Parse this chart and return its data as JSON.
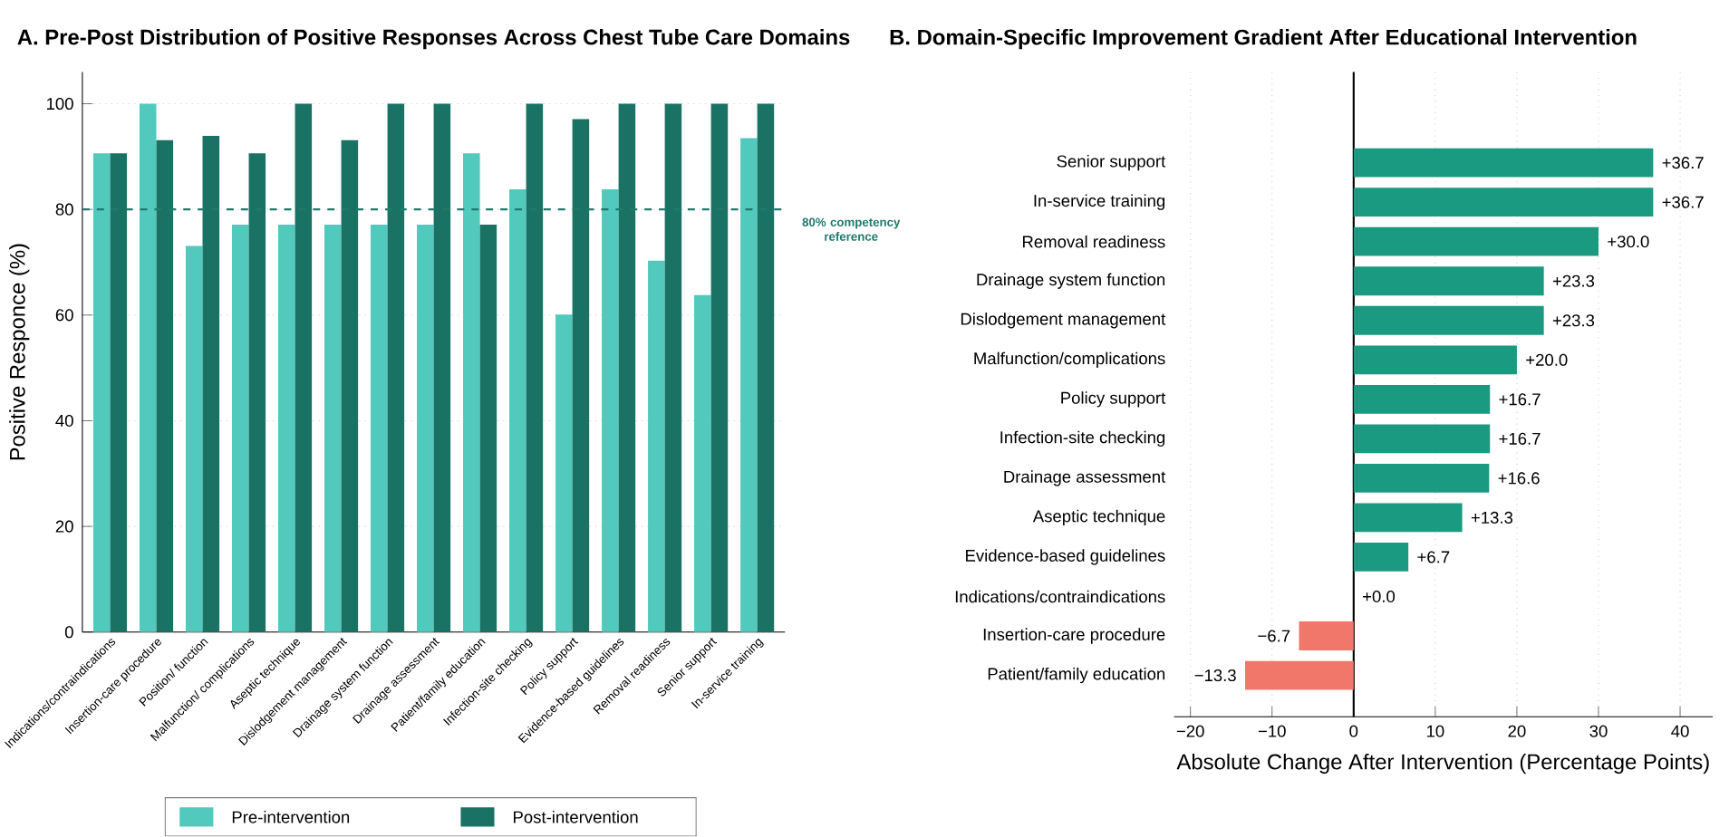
{
  "chart_data": [
    {
      "type": "bar",
      "title": "A. Pre-Post Distribution of Positive Responses Across Chest Tube Care Domains",
      "ylabel": "Positive Responce (%)",
      "categories": [
        "Indications/contraindications",
        "Insertion-care procedure",
        "Position/ function",
        "Malfunction/ complications",
        "Aseptic technique",
        "Dislodgement management",
        "Drainage system function",
        "Drainage assessment",
        "Patient/family education",
        "Infection-site checking",
        "Policy support",
        "Evidence-based guidelines",
        "Removal readiness",
        "Senior support",
        "In-service training"
      ],
      "series": [
        {
          "name": "Pre-intervention",
          "color": "#52c9bd",
          "values": [
            90.6,
            100,
            73.1,
            77.1,
            77.1,
            77.1,
            77.1,
            77.1,
            90.6,
            83.8,
            60.1,
            83.8,
            70.3,
            63.8,
            93.5
          ]
        },
        {
          "name": "Post-intervention",
          "color": "#1a7264",
          "values": [
            90.6,
            93.1,
            93.9,
            90.6,
            100,
            93.1,
            100,
            100,
            77.1,
            100,
            97.1,
            100,
            100,
            100,
            100
          ]
        }
      ],
      "ylim": [
        0,
        106
      ],
      "yticks": [
        0,
        20,
        40,
        60,
        80,
        100
      ],
      "grid": "y",
      "legend": "bottom",
      "ref_lines": [
        {
          "axis": "y",
          "value": 80,
          "label": "80% competency reference",
          "color": "#1f7a6e",
          "line_style": "dashed"
        }
      ]
    },
    {
      "type": "bar",
      "orientation": "horizontal",
      "title": "B. Domain-Specific Improvement Gradient After Educational Intervention",
      "xlabel": "Absolute Change After Intervention (Percentage Points)",
      "categories": [
        "Senior support",
        "In-service training",
        "Removal readiness",
        "Drainage system function",
        "Dislodgement management",
        "Malfunction/complications",
        "Policy support",
        "Infection-site checking",
        "Drainage assessment",
        "Aseptic technique",
        "Evidence-based guidelines",
        "Indications/contraindications",
        "Insertion-care procedure",
        "Patient/family education"
      ],
      "values": [
        36.7,
        36.7,
        30.0,
        23.3,
        23.3,
        20.0,
        16.7,
        16.7,
        16.6,
        13.3,
        6.7,
        0.0,
        -6.7,
        -13.3
      ],
      "colors": [
        "#1a9a80",
        "#1a9a80",
        "#1a9a80",
        "#1a9a80",
        "#1a9a80",
        "#1a9a80",
        "#1a9a80",
        "#1a9a80",
        "#1a9a80",
        "#1a9a80",
        "#1a9a80",
        "#1a9a80",
        "#f0776a",
        "#f0776a"
      ],
      "value_labels": [
        "+36.7",
        "+36.7",
        "+30.0",
        "+23.3",
        "+23.3",
        "+20.0",
        "+16.7",
        "+16.7",
        "+16.6",
        "+13.3",
        "+6.7",
        "+0.0",
        "−6.7",
        "−13.3"
      ],
      "xlim": [
        -22,
        44
      ],
      "xticks": [
        {
          "value": -20,
          "label": "−20"
        },
        {
          "value": -10,
          "label": "−10"
        },
        0,
        10,
        20,
        30,
        40
      ],
      "grid": "x"
    }
  ]
}
